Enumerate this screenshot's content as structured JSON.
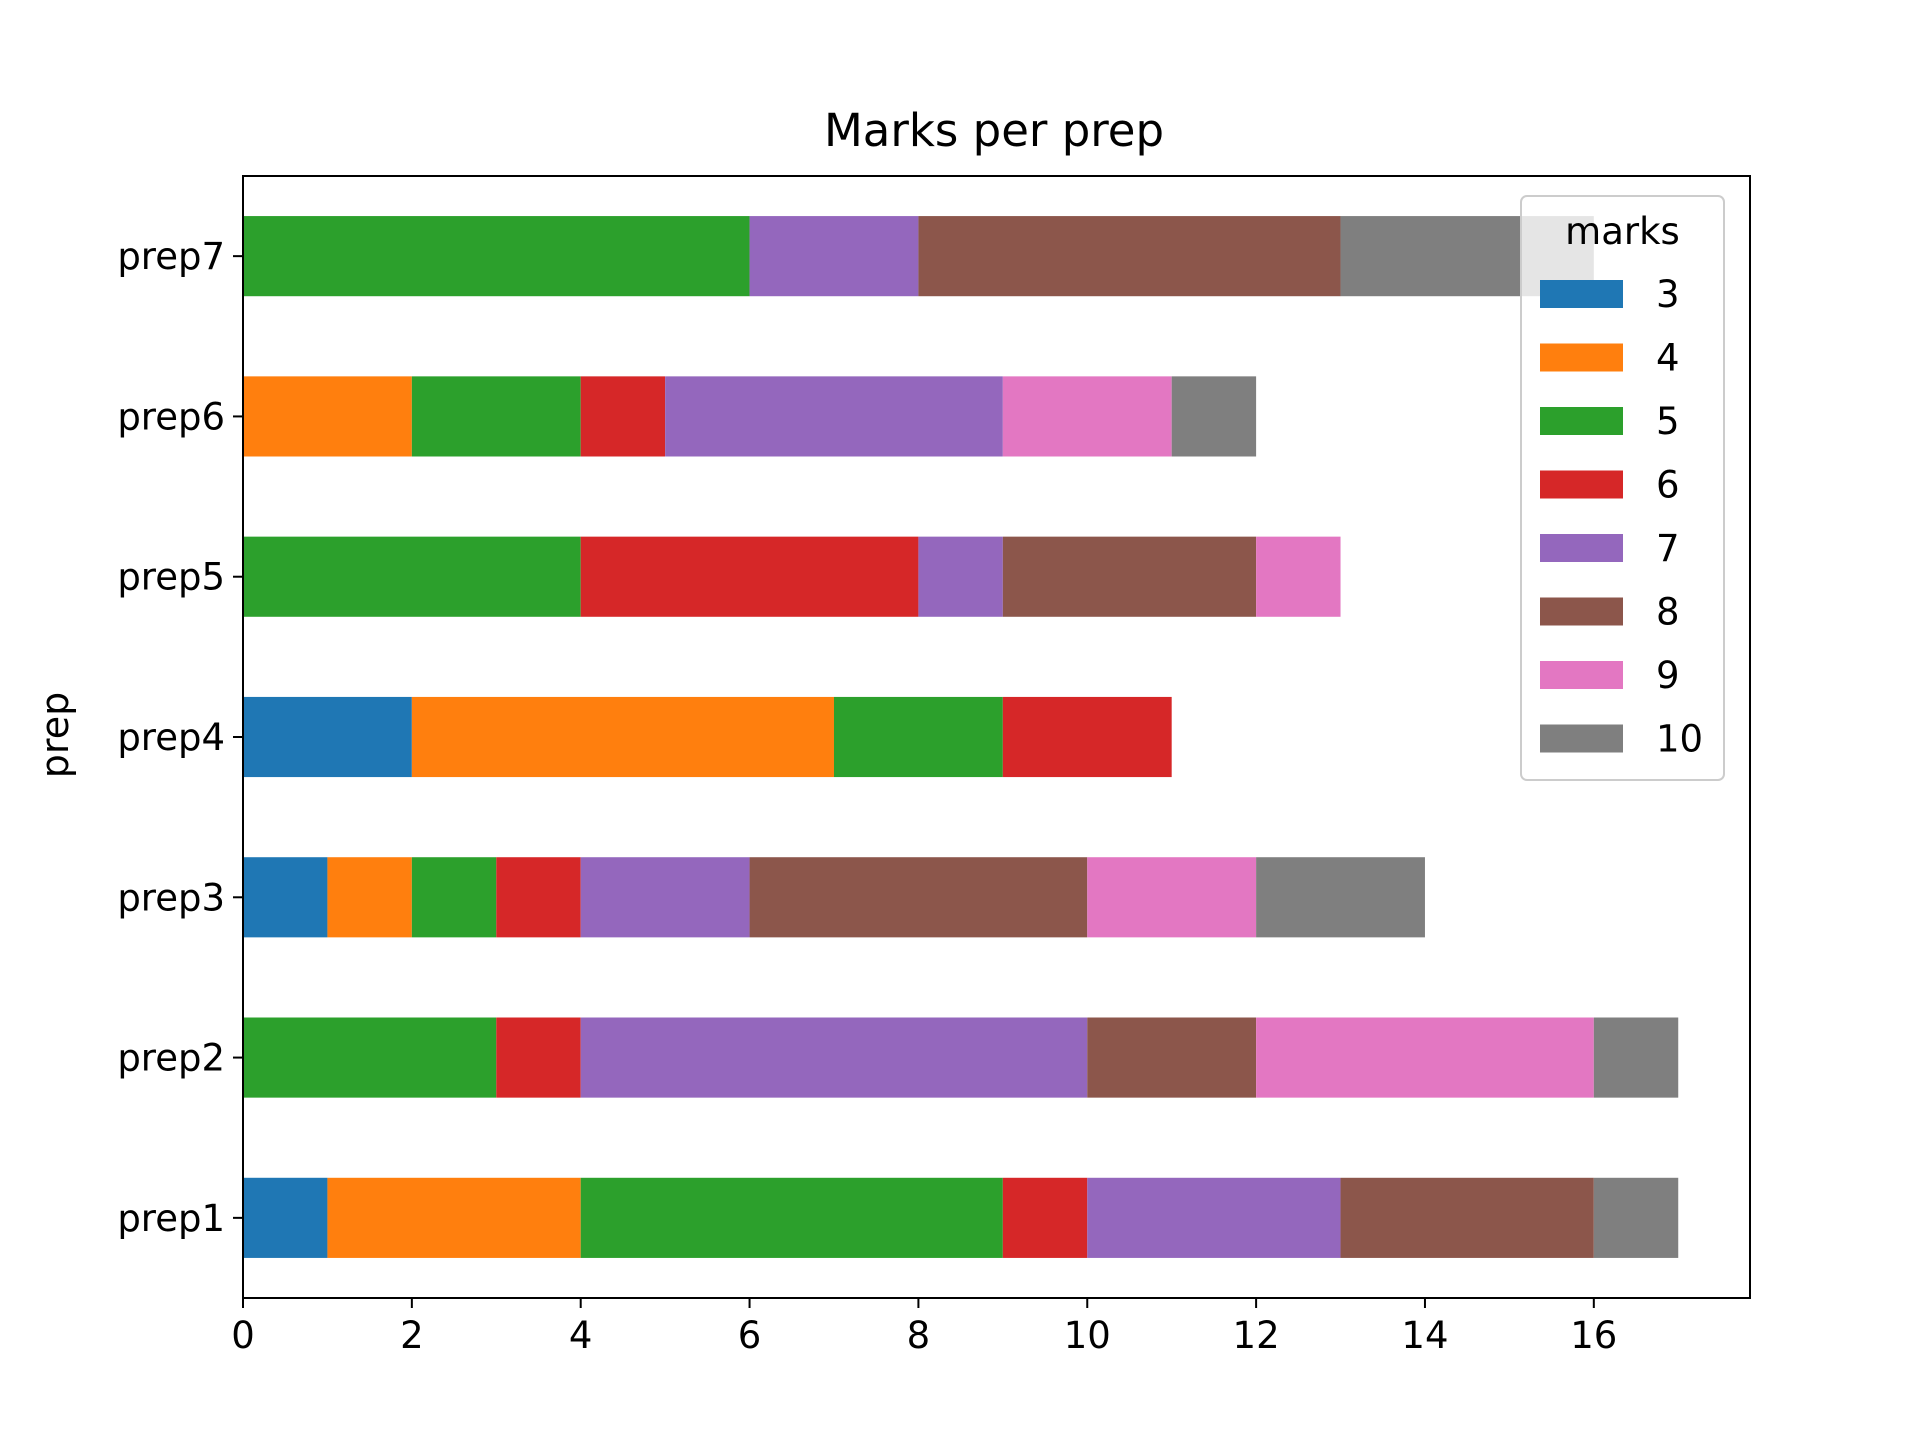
{
  "chart_data": {
    "type": "bar",
    "orientation": "horizontal",
    "stacked": true,
    "title": "Marks per prep",
    "xlabel": "",
    "ylabel": "prep",
    "categories": [
      "prep1",
      "prep2",
      "prep3",
      "prep4",
      "prep5",
      "prep6",
      "prep7"
    ],
    "xlim": [
      0,
      17.85
    ],
    "x_ticks": [
      0,
      2,
      4,
      6,
      8,
      10,
      12,
      14,
      16
    ],
    "grid": false,
    "legend": {
      "title": "marks",
      "placement": "top-right"
    },
    "series": [
      {
        "name": "3",
        "color": "#1f77b4",
        "values": [
          1,
          0,
          1,
          2,
          0,
          0,
          0
        ]
      },
      {
        "name": "4",
        "color": "#ff7f0e",
        "values": [
          3,
          0,
          1,
          5,
          0,
          2,
          0
        ]
      },
      {
        "name": "5",
        "color": "#2ca02c",
        "values": [
          5,
          3,
          1,
          2,
          4,
          2,
          6
        ]
      },
      {
        "name": "6",
        "color": "#d62728",
        "values": [
          1,
          1,
          1,
          2,
          4,
          1,
          0
        ]
      },
      {
        "name": "7",
        "color": "#9467bd",
        "values": [
          3,
          6,
          2,
          0,
          1,
          4,
          2
        ]
      },
      {
        "name": "8",
        "color": "#8c564b",
        "values": [
          3,
          2,
          4,
          0,
          3,
          0,
          5
        ]
      },
      {
        "name": "9",
        "color": "#e377c2",
        "values": [
          0,
          4,
          2,
          0,
          1,
          2,
          0
        ]
      },
      {
        "name": "10",
        "color": "#7f7f7f",
        "values": [
          1,
          1,
          2,
          0,
          0,
          1,
          3
        ]
      }
    ]
  }
}
